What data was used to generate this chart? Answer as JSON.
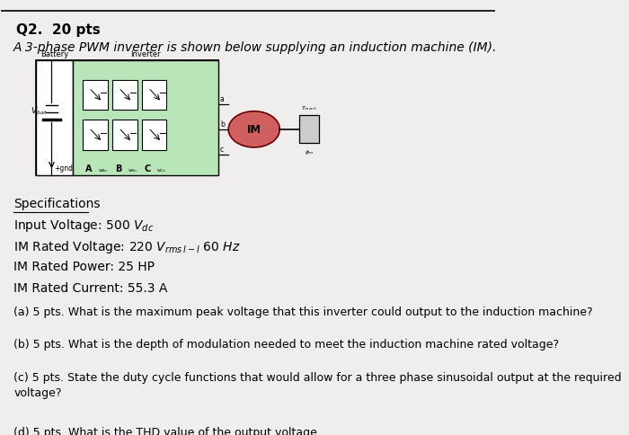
{
  "title_q": "Q2.  20 pts",
  "intro": "A 3-phase PWM inverter is shown below supplying an induction machine (IM).",
  "specs_heading": "Specifications",
  "spec1": "Input Voltage: 500 $V_{dc}$",
  "spec2": "IM Rated Voltage: 220 $V_{rms\\,l-l}$ 60 $Hz$",
  "spec3": "IM Rated Power: 25 HP",
  "spec4": "IM Rated Current: 55.3 A",
  "bg_color": "#f0eded",
  "circuit_box_color": "#c8e6c9"
}
